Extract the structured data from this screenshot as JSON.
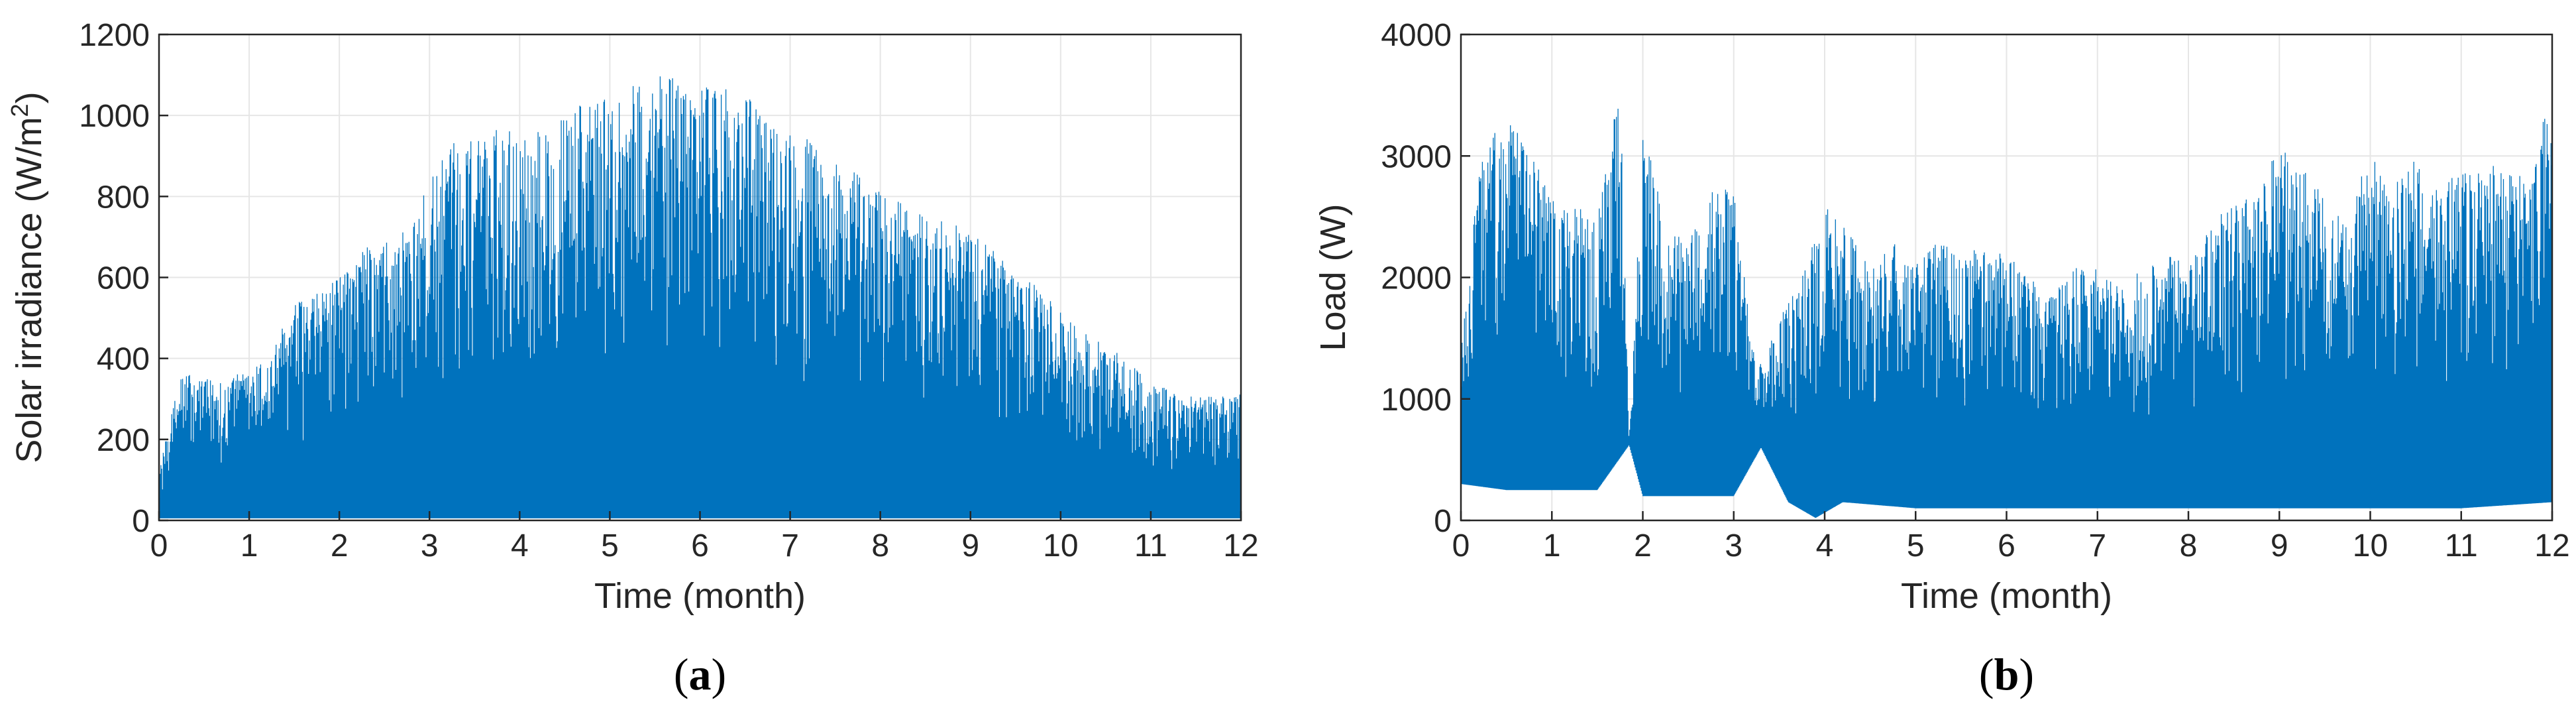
{
  "chart_data": [
    {
      "type": "area",
      "panel_label": "a",
      "xlabel": "Time (month)",
      "ylabel_main": "Solar irradiance (W/m",
      "ylabel_sup": "2",
      "ylabel_tail": ")",
      "xlim": [
        0,
        12
      ],
      "ylim": [
        0,
        1200
      ],
      "xticks": [
        "0",
        "1",
        "2",
        "3",
        "4",
        "5",
        "6",
        "7",
        "8",
        "9",
        "10",
        "11",
        "12"
      ],
      "yticks": [
        "0",
        "200",
        "400",
        "600",
        "800",
        "1000",
        "1200"
      ],
      "grid": true,
      "series": [
        {
          "color": "#0072BD",
          "peak_envelope": {
            "x": [
              0,
              0.25,
              0.5,
              0.75,
              1,
              1.25,
              1.5,
              1.75,
              2,
              2.25,
              2.5,
              2.75,
              3,
              3.25,
              3.5,
              3.75,
              4,
              4.25,
              4.5,
              4.75,
              5,
              5.25,
              5.5,
              5.75,
              6,
              6.25,
              6.5,
              6.75,
              7,
              7.25,
              7.5,
              7.75,
              8,
              8.25,
              8.5,
              8.75,
              9,
              9.25,
              9.5,
              9.75,
              10,
              10.25,
              10.5,
              10.75,
              11,
              11.25,
              11.5,
              11.75,
              12
            ],
            "y": [
              120,
              380,
              350,
              360,
              370,
              420,
              540,
              560,
              600,
              670,
              690,
              720,
              840,
              930,
              960,
              970,
              980,
              960,
              1000,
              1040,
              1060,
              1080,
              1100,
              1090,
              1070,
              1070,
              1050,
              1000,
              960,
              940,
              890,
              860,
              820,
              780,
              760,
              740,
              710,
              680,
              620,
              580,
              520,
              470,
              430,
              400,
              340,
              320,
              310,
              310,
              320
            ]
          },
          "baseline_envelope": {
            "x": [
              0,
              1,
              2,
              3,
              4,
              5,
              6,
              7,
              8,
              9,
              10,
              11,
              12
            ],
            "y": [
              5,
              5,
              5,
              5,
              5,
              5,
              5,
              5,
              5,
              5,
              5,
              5,
              5
            ]
          }
        }
      ]
    },
    {
      "type": "line",
      "panel_label": "b",
      "xlabel": "Time (month)",
      "ylabel": "Load (W)",
      "xlim": [
        0,
        12
      ],
      "ylim": [
        0,
        4000
      ],
      "xticks": [
        "0",
        "1",
        "2",
        "3",
        "4",
        "5",
        "6",
        "7",
        "8",
        "9",
        "10",
        "11",
        "12"
      ],
      "yticks": [
        "0",
        "1000",
        "2000",
        "3000",
        "4000"
      ],
      "grid": true,
      "series": [
        {
          "color": "#0072BD",
          "peak_envelope": {
            "x": [
              0,
              0.25,
              0.5,
              0.75,
              1,
              1.25,
              1.5,
              1.75,
              1.85,
              2,
              2.25,
              2.5,
              2.75,
              3,
              3.25,
              3.5,
              3.75,
              4,
              4.25,
              4.5,
              4.75,
              5,
              5.25,
              5.5,
              5.75,
              6,
              6.25,
              6.5,
              6.75,
              7,
              7.25,
              7.5,
              7.75,
              8,
              8.25,
              8.5,
              8.75,
              9,
              9.25,
              9.5,
              9.75,
              10,
              10.25,
              10.5,
              10.75,
              11,
              11.25,
              11.5,
              11.75,
              12
            ],
            "y": [
              1500,
              3200,
              3300,
              3100,
              2700,
              2600,
              2500,
              3600,
              700,
              3400,
              2400,
              2300,
              2800,
              2700,
              1200,
              1700,
              2000,
              2600,
              2400,
              2100,
              2300,
              2100,
              2300,
              2200,
              2300,
              2200,
              2000,
              1900,
              2100,
              2100,
              1900,
              2100,
              2200,
              2100,
              2500,
              2600,
              2700,
              3100,
              2900,
              2700,
              2600,
              3100,
              2800,
              3000,
              2700,
              2900,
              3000,
              2900,
              2800,
              3600
            ]
          },
          "baseline_envelope": {
            "x": [
              0,
              0.5,
              1,
              1.5,
              1.85,
              2,
              2.5,
              3,
              3.3,
              3.6,
              3.9,
              4.2,
              5,
              6,
              7,
              8,
              9,
              10,
              11,
              12
            ],
            "y": [
              300,
              250,
              250,
              250,
              620,
              200,
              200,
              200,
              600,
              150,
              20,
              150,
              100,
              100,
              100,
              100,
              100,
              100,
              100,
              150
            ]
          }
        }
      ]
    }
  ]
}
